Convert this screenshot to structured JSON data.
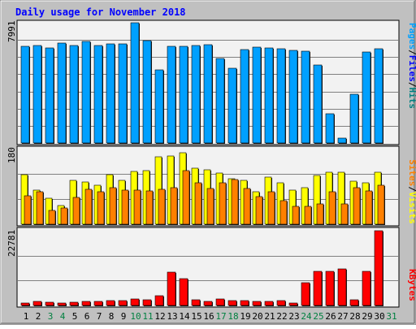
{
  "title": "Daily usage for November 2018",
  "colors": {
    "background": "#c0c0c0",
    "plot_background": "#f2f2f2",
    "gridline": "#808080",
    "title": "#0000ff",
    "weekday_label": "#000000",
    "weekend_label": "#008040",
    "pages": "#00a0ff",
    "files": "#0000ff",
    "hits": "#008080",
    "visits": "#ffff00",
    "sites": "#ff8000",
    "kbytes": "#ff0000"
  },
  "days": [
    "1",
    "2",
    "3",
    "4",
    "5",
    "6",
    "7",
    "8",
    "9",
    "10",
    "11",
    "12",
    "13",
    "14",
    "15",
    "16",
    "17",
    "18",
    "19",
    "20",
    "21",
    "22",
    "23",
    "24",
    "25",
    "26",
    "27",
    "28",
    "29",
    "30",
    "31"
  ],
  "weekend_days": [
    "3",
    "4",
    "10",
    "11",
    "17",
    "18",
    "24",
    "25",
    "31"
  ],
  "side_labels": {
    "top": [
      {
        "text": "Pages",
        "role": "pages"
      },
      {
        "text": "/",
        "role": "sep"
      },
      {
        "text": "Files",
        "role": "files"
      },
      {
        "text": "/",
        "role": "sep"
      },
      {
        "text": "Hits",
        "role": "hits"
      }
    ],
    "middle": [
      {
        "text": "Sites",
        "role": "sites"
      },
      {
        "text": "/",
        "role": "sep"
      },
      {
        "text": "Visits",
        "role": "visits"
      }
    ],
    "bottom": [
      {
        "text": "KBytes",
        "role": "kbytes"
      }
    ]
  },
  "chart_data": [
    {
      "type": "bar",
      "panel": "hits",
      "ymax_label": "7991",
      "ylim": [
        0,
        7991
      ],
      "categories": [
        "1",
        "2",
        "3",
        "4",
        "5",
        "6",
        "7",
        "8",
        "9",
        "10",
        "11",
        "12",
        "13",
        "14",
        "15",
        "16",
        "17",
        "18",
        "19",
        "20",
        "21",
        "22",
        "23",
        "24",
        "25",
        "26",
        "27",
        "28",
        "29",
        "30",
        "31"
      ],
      "series": [
        {
          "name": "Hits",
          "values": [
            6450,
            6500,
            6300,
            6650,
            6480,
            6750,
            6480,
            6600,
            6580,
            7991,
            6800,
            4870,
            6450,
            6430,
            6500,
            6550,
            5620,
            4950,
            6200,
            6350,
            6300,
            6280,
            6150,
            6080,
            5200,
            1950,
            300,
            3220,
            6050,
            6250,
            null
          ]
        }
      ]
    },
    {
      "type": "bar",
      "panel": "visits",
      "ymax_label": "180",
      "ylim": [
        0,
        180
      ],
      "categories": [
        "1",
        "2",
        "3",
        "4",
        "5",
        "6",
        "7",
        "8",
        "9",
        "10",
        "11",
        "12",
        "13",
        "14",
        "15",
        "16",
        "17",
        "18",
        "19",
        "20",
        "21",
        "22",
        "23",
        "24",
        "25",
        "26",
        "27",
        "28",
        "29",
        "30",
        "31"
      ],
      "series": [
        {
          "name": "Visits",
          "values": [
            118,
            82,
            62,
            45,
            105,
            100,
            92,
            118,
            104,
            125,
            128,
            160,
            162,
            170,
            133,
            130,
            121,
            108,
            104,
            78,
            113,
            99,
            81,
            88,
            117,
            124,
            123,
            103,
            98,
            123,
            null
          ]
        },
        {
          "name": "Sites",
          "values": [
            68,
            77,
            33,
            38,
            63,
            83,
            77,
            88,
            82,
            81,
            80,
            83,
            88,
            127,
            98,
            85,
            98,
            106,
            85,
            65,
            77,
            57,
            42,
            42,
            48,
            78,
            48,
            88,
            80,
            92,
            null
          ]
        }
      ]
    },
    {
      "type": "bar",
      "panel": "kbytes",
      "ymax_label": "22781",
      "ylim": [
        0,
        22781
      ],
      "categories": [
        "1",
        "2",
        "3",
        "4",
        "5",
        "6",
        "7",
        "8",
        "9",
        "10",
        "11",
        "12",
        "13",
        "14",
        "15",
        "16",
        "17",
        "18",
        "19",
        "20",
        "21",
        "22",
        "23",
        "24",
        "25",
        "26",
        "27",
        "28",
        "29",
        "30",
        "31"
      ],
      "series": [
        {
          "name": "KBytes",
          "values": [
            700,
            1120,
            1000,
            850,
            980,
            1150,
            1250,
            1480,
            1600,
            2050,
            1800,
            2850,
            10250,
            8100,
            1850,
            1300,
            2050,
            1550,
            1480,
            1150,
            1280,
            1400,
            850,
            6900,
            10400,
            10500,
            11150,
            1650,
            10300,
            22781,
            null
          ]
        }
      ]
    }
  ]
}
